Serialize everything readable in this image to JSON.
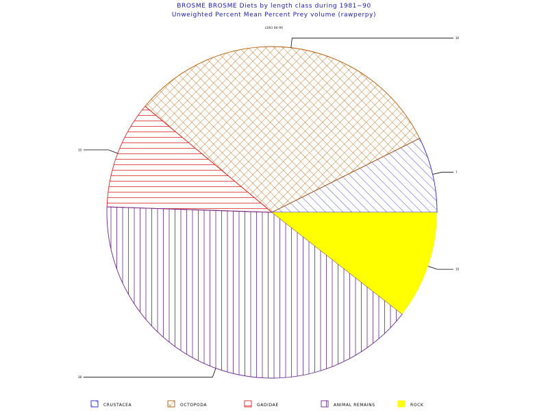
{
  "chart_data": {
    "type": "pie",
    "title": "BROSME BROSME Diets by length class during 1981−90",
    "subtitle": "Unweighted Percent Mean Percent Prey  volume (rawperpy)",
    "group_label": "LEN3 86-90",
    "slices": [
      {
        "name": "CRUSTACEA",
        "value": 7,
        "label": "7",
        "color": "#2222cc",
        "pattern": "diag"
      },
      {
        "name": "OCTOPODA",
        "value": 30,
        "label": "30",
        "color": "#b05a00",
        "pattern": "cross"
      },
      {
        "name": "GADIDAE",
        "value": 10,
        "label": "10",
        "color": "#dd2222",
        "pattern": "horiz"
      },
      {
        "name": "ANIMAL REMAINS",
        "value": 38,
        "label": "38",
        "color": "#662288",
        "pattern": "vert"
      },
      {
        "name": "ROCK",
        "value": 10,
        "label": "10",
        "color": "#ffff00",
        "pattern": "solid"
      }
    ],
    "legend_position": "bottom"
  }
}
